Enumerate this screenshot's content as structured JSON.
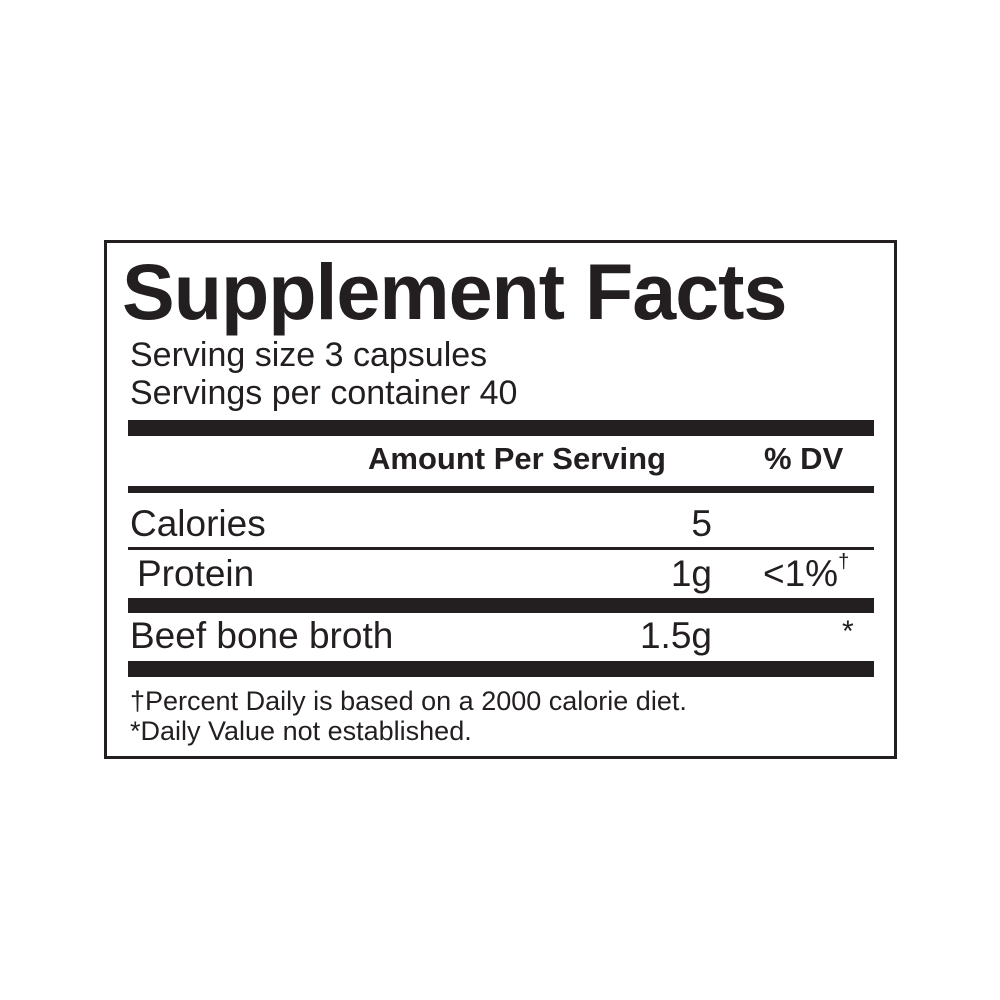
{
  "title": "Supplement Facts",
  "serving_size": "Serving size 3 capsules",
  "servings_per_container": "Servings per container 40",
  "header": {
    "amount": "Amount Per Serving",
    "dv": "% DV"
  },
  "rows": [
    {
      "name": "Calories",
      "amount": "5",
      "dv": ""
    },
    {
      "name": "Protein",
      "amount": "1g",
      "dv": "<1%",
      "dv_mark": "†"
    },
    {
      "name": "Beef bone broth",
      "amount": "1.5g",
      "dv": "*"
    }
  ],
  "footnotes": [
    "†Percent Daily is based on a 2000 calorie diet.",
    "*Daily Value not established."
  ]
}
